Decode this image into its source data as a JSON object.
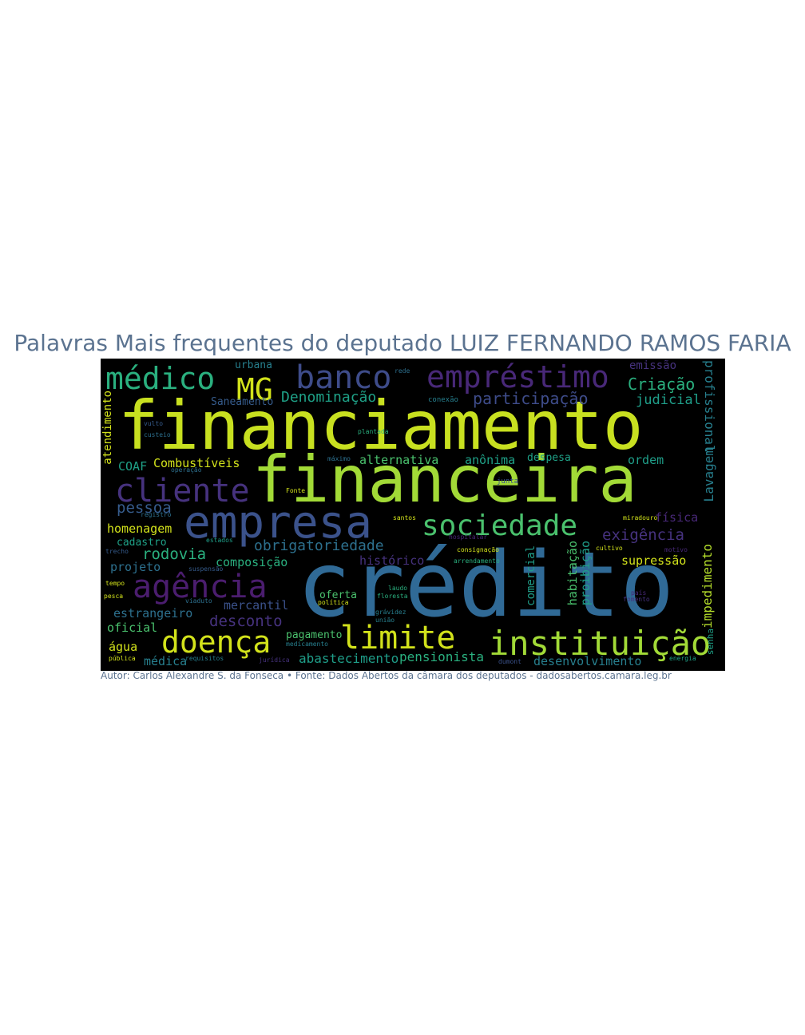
{
  "title": "Palavras Mais frequentes do deputado LUIZ FERNANDO RAMOS FARIA",
  "caption": "Autor: Carlos Alexandre S. da Fonseca • Fonte: Dados Abertos da câmara dos deputados - dadosabertos.camara.leg.br",
  "words": {
    "credito": "crédito",
    "financiamento": "financiamento",
    "financeira": "financeira",
    "empresa": "empresa",
    "instituicao": "instituição",
    "medico": "médico",
    "banco": "banco",
    "emprestimo": "empréstimo",
    "mg": "MG",
    "cliente": "cliente",
    "sociedade": "sociedade",
    "agencia": "agência",
    "doenca": "doença",
    "limite": "limite",
    "denominacao": "Denominação",
    "participacao": "participação",
    "criacao": "Criação",
    "judicial": "judicial",
    "emissao": "emissão",
    "profissional": "profissional",
    "saneamento": "Saneamento",
    "urbana": "urbana",
    "atendimento": "atendimento",
    "coaf": "COAF",
    "combustiveis": "Combustíveis",
    "alternativa": "alternativa",
    "anonima": "anônima",
    "despesa": "despesa",
    "ordem": "ordem",
    "lavagem": "Lavagem",
    "pessoa": "pessoa",
    "homenagem": "homenagem",
    "cadastro": "cadastro",
    "obrigatoriedade": "obrigatoriedade",
    "exigencia": "exigência",
    "fisica": "física",
    "rodovia": "rodovia",
    "composicao": "composição",
    "historico": "histórico",
    "supressao": "supressão",
    "projeto": "projeto",
    "impedimento": "impedimento",
    "habitacao": "habitação",
    "proibicao": "proibição",
    "estrangeiro": "estrangeiro",
    "mercantil": "mercantil",
    "desconto": "desconto",
    "oferta": "oferta",
    "comercial": "comercial",
    "oficial": "oficial",
    "agua": "água",
    "pagamento": "pagamento",
    "abastecimento": "abastecimento",
    "pensionista": "pensionista",
    "desenvolvimento": "desenvolvimento",
    "medica": "médica",
    "senha": "senha"
  },
  "small_words": [
    "Fonte",
    "junta",
    "santos",
    "registro",
    "estados",
    "laudo",
    "floresta",
    "política",
    "grávidez",
    "união",
    "medicamento",
    "requisitos",
    "jurídica",
    "dumont",
    "energia",
    "pública",
    "fomento",
    "país",
    "miradouro",
    "cultivo",
    "arrendamento",
    "consignação",
    "hospitalar",
    "conexão",
    "plantada",
    "custeio",
    "vulto",
    "máximo",
    "operação",
    "suspensão",
    "tempo",
    "viaduto",
    "trecho",
    "pesca",
    "motivo",
    "rede"
  ],
  "colors": {
    "background": "#000000",
    "title": "#5b7390",
    "yellow": "#d2e21b",
    "lime": "#a2da37",
    "green": "#4ac16d",
    "teal": "#1fa187",
    "cyan": "#277f8e",
    "steel": "#365c8d",
    "indigo": "#46327e",
    "purple": "#440154"
  }
}
